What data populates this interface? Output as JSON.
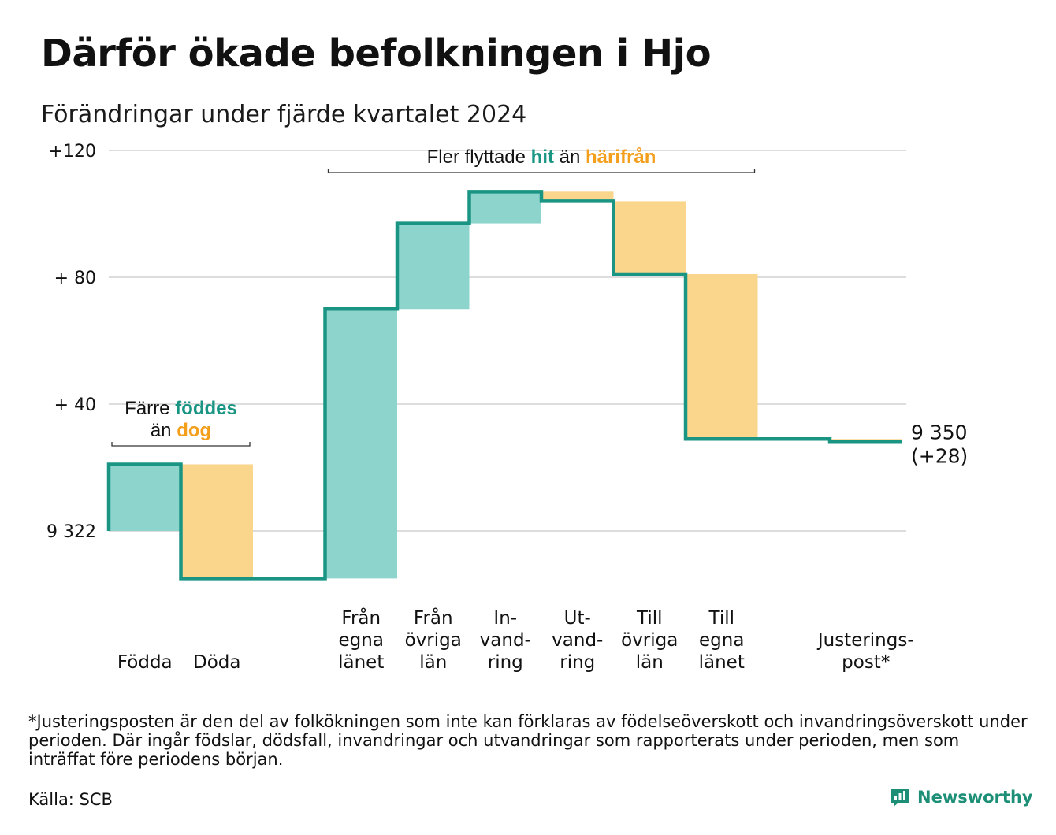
{
  "title": "Därför ökade befolkningen i Hjo",
  "subtitle": "Förändringar under fjärde kvartalet 2024",
  "footnote": "*Justeringsposten är den del av folkökningen som inte kan förklaras av födelseöverskott och invandringsöverskott under perioden. Där ingår födslar, dödsfall, invandringar och utvandringar som rapporterats under perioden, men som inträffat före periodens början.",
  "source": "Källa: SCB",
  "brand": "Newsworthy",
  "colors": {
    "increase": "#8dd5cc",
    "decrease": "#fad58c",
    "line": "#1a9583",
    "teal_text": "#1a9583",
    "orange_text": "#f49f1c",
    "grid": "#dddddd"
  },
  "chart_data": {
    "type": "waterfall",
    "start_value": 9322,
    "end_value": 9350,
    "end_labels": [
      "9 350",
      "(+28)"
    ],
    "y_ticks": [
      {
        "value": 0,
        "label": "9 322"
      },
      {
        "value": 40,
        "label": "+ 40"
      },
      {
        "value": 80,
        "label": "+ 80"
      },
      {
        "value": 120,
        "label": "+120"
      }
    ],
    "ylim": [
      -20,
      120
    ],
    "steps": [
      {
        "label": [
          "Födda"
        ],
        "change": 21,
        "kind": "increase"
      },
      {
        "label": [
          "Döda"
        ],
        "change": -36,
        "kind": "decrease"
      },
      {
        "label": [],
        "change": 0,
        "kind": "gap"
      },
      {
        "label": [
          "Från",
          "egna",
          "länet"
        ],
        "change": 85,
        "kind": "increase"
      },
      {
        "label": [
          "Från",
          "övriga",
          "län"
        ],
        "change": 27,
        "kind": "increase"
      },
      {
        "label": [
          "In-",
          "vand-",
          "ring"
        ],
        "change": 10,
        "kind": "increase"
      },
      {
        "label": [
          "Ut-",
          "vand-",
          "ring"
        ],
        "change": -3,
        "kind": "decrease"
      },
      {
        "label": [
          "Till",
          "övriga",
          "län"
        ],
        "change": -23,
        "kind": "decrease"
      },
      {
        "label": [
          "Till",
          "egna",
          "länet"
        ],
        "change": -52,
        "kind": "decrease"
      },
      {
        "label": [],
        "change": 0,
        "kind": "gap"
      },
      {
        "label": [
          "Justerings-",
          "post*"
        ],
        "change": -1,
        "kind": "decrease"
      }
    ],
    "annotations": [
      {
        "lines": [
          [
            {
              "text": "Färre ",
              "color": "dark"
            },
            {
              "text": "föddes",
              "color": "teal"
            }
          ],
          [
            {
              "text": "än ",
              "color": "dark"
            },
            {
              "text": "dog",
              "color": "orange"
            }
          ]
        ],
        "span": [
          0,
          1
        ]
      },
      {
        "lines": [
          [
            {
              "text": "Fler flyttade ",
              "color": "dark"
            },
            {
              "text": "hit",
              "color": "teal"
            },
            {
              "text": " än ",
              "color": "dark"
            },
            {
              "text": "härifrån",
              "color": "orange"
            }
          ]
        ],
        "span": [
          3,
          8
        ]
      }
    ]
  }
}
